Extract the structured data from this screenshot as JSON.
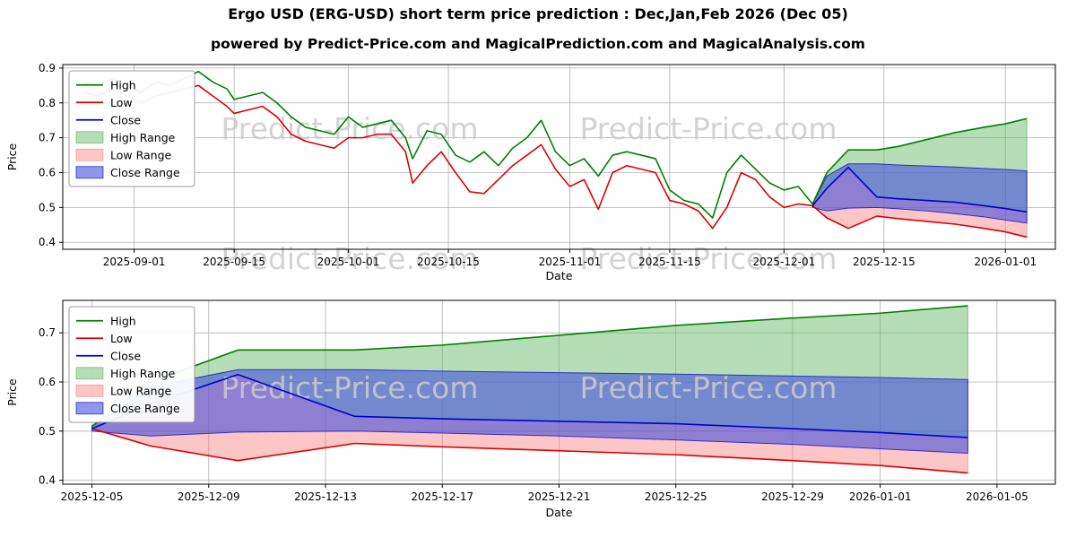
{
  "page": {
    "title": "Ergo USD (ERG-USD) short term price prediction : Dec,Jan,Feb 2026 (Dec 05)",
    "subtitle": "powered by Predict-Price.com and MagicalPrediction.com and MagicalAnalysis.com",
    "watermark": "Predict-Price.com"
  },
  "colors": {
    "high": "#008000",
    "low": "#dd0000",
    "close": "#0000cc",
    "high_range_fill": "rgba(110,190,110,0.5)",
    "high_range_edge": "rgba(60,150,60,0.55)",
    "low_range_fill": "rgba(250,120,120,0.42)",
    "low_range_edge": "rgba(235,100,100,0.55)",
    "close_range_fill": "rgba(70,80,220,0.6)",
    "close_range_edge": "rgba(25,25,200,0.85)",
    "grid": "#b0b0b0",
    "frame": "#000000",
    "watermark": "#cccccc"
  },
  "chart_data": [
    {
      "type": "line",
      "title": "",
      "xlabel": "Date",
      "ylabel": "Price",
      "x_ticks": [
        "2025-09-01",
        "2025-09-15",
        "2025-10-01",
        "2025-10-15",
        "2025-11-01",
        "2025-11-15",
        "2025-12-01",
        "2025-12-15",
        "2026-01-01"
      ],
      "y_ticks": [
        0.4,
        0.5,
        0.6,
        0.7,
        0.8,
        0.9
      ],
      "xlim": [
        "2025-08-22",
        "2026-01-08"
      ],
      "ylim": [
        0.38,
        0.91
      ],
      "legend": [
        "High",
        "Low",
        "Close",
        "High Range",
        "Low Range",
        "Close Range"
      ],
      "series": [
        {
          "name": "High",
          "color_key": "high",
          "x": [
            "2025-08-25",
            "2025-08-27",
            "2025-08-29",
            "2025-08-31",
            "2025-09-02",
            "2025-09-04",
            "2025-09-06",
            "2025-09-08",
            "2025-09-10",
            "2025-09-12",
            "2025-09-14",
            "2025-09-15",
            "2025-09-17",
            "2025-09-19",
            "2025-09-21",
            "2025-09-23",
            "2025-09-25",
            "2025-09-27",
            "2025-09-29",
            "2025-10-01",
            "2025-10-03",
            "2025-10-05",
            "2025-10-07",
            "2025-10-09",
            "2025-10-10",
            "2025-10-12",
            "2025-10-14",
            "2025-10-16",
            "2025-10-18",
            "2025-10-20",
            "2025-10-22",
            "2025-10-24",
            "2025-10-26",
            "2025-10-28",
            "2025-10-30",
            "2025-11-01",
            "2025-11-03",
            "2025-11-05",
            "2025-11-07",
            "2025-11-09",
            "2025-11-11",
            "2025-11-13",
            "2025-11-15",
            "2025-11-17",
            "2025-11-19",
            "2025-11-21",
            "2025-11-23",
            "2025-11-25",
            "2025-11-27",
            "2025-11-29",
            "2025-12-01",
            "2025-12-03",
            "2025-12-05",
            "2025-12-07",
            "2025-12-10",
            "2025-12-14",
            "2025-12-17",
            "2025-12-21",
            "2025-12-25",
            "2025-12-29",
            "2026-01-01",
            "2026-01-04"
          ],
          "y": [
            0.86,
            0.85,
            0.87,
            0.85,
            0.83,
            0.86,
            0.85,
            0.87,
            0.89,
            0.86,
            0.84,
            0.81,
            0.82,
            0.83,
            0.8,
            0.76,
            0.73,
            0.72,
            0.71,
            0.76,
            0.73,
            0.74,
            0.75,
            0.7,
            0.64,
            0.72,
            0.71,
            0.65,
            0.63,
            0.66,
            0.62,
            0.67,
            0.7,
            0.75,
            0.66,
            0.62,
            0.64,
            0.59,
            0.65,
            0.66,
            0.65,
            0.64,
            0.55,
            0.52,
            0.51,
            0.47,
            0.6,
            0.65,
            0.61,
            0.57,
            0.55,
            0.56,
            0.51,
            0.6,
            0.665,
            0.665,
            0.675,
            0.695,
            0.715,
            0.73,
            0.74,
            0.755
          ]
        },
        {
          "name": "Low",
          "color_key": "low",
          "x": [
            "2025-08-25",
            "2025-08-27",
            "2025-08-29",
            "2025-08-31",
            "2025-09-02",
            "2025-09-04",
            "2025-09-06",
            "2025-09-08",
            "2025-09-10",
            "2025-09-12",
            "2025-09-14",
            "2025-09-15",
            "2025-09-17",
            "2025-09-19",
            "2025-09-21",
            "2025-09-23",
            "2025-09-25",
            "2025-09-27",
            "2025-09-29",
            "2025-10-01",
            "2025-10-03",
            "2025-10-05",
            "2025-10-07",
            "2025-10-09",
            "2025-10-10",
            "2025-10-12",
            "2025-10-14",
            "2025-10-16",
            "2025-10-18",
            "2025-10-20",
            "2025-10-22",
            "2025-10-24",
            "2025-10-26",
            "2025-10-28",
            "2025-10-30",
            "2025-11-01",
            "2025-11-03",
            "2025-11-05",
            "2025-11-07",
            "2025-11-09",
            "2025-11-11",
            "2025-11-13",
            "2025-11-15",
            "2025-11-17",
            "2025-11-19",
            "2025-11-21",
            "2025-11-23",
            "2025-11-25",
            "2025-11-27",
            "2025-11-29",
            "2025-12-01",
            "2025-12-03",
            "2025-12-05",
            "2025-12-07",
            "2025-12-10",
            "2025-12-14",
            "2025-12-17",
            "2025-12-21",
            "2025-12-25",
            "2025-12-29",
            "2026-01-01",
            "2026-01-04"
          ],
          "y": [
            0.83,
            0.82,
            0.84,
            0.82,
            0.8,
            0.82,
            0.83,
            0.84,
            0.85,
            0.82,
            0.79,
            0.77,
            0.78,
            0.79,
            0.76,
            0.71,
            0.69,
            0.68,
            0.67,
            0.7,
            0.7,
            0.71,
            0.71,
            0.66,
            0.57,
            0.62,
            0.66,
            0.6,
            0.545,
            0.54,
            0.58,
            0.62,
            0.65,
            0.68,
            0.61,
            0.56,
            0.58,
            0.495,
            0.6,
            0.62,
            0.61,
            0.6,
            0.52,
            0.51,
            0.49,
            0.44,
            0.5,
            0.6,
            0.58,
            0.53,
            0.5,
            0.51,
            0.505,
            0.47,
            0.44,
            0.475,
            0.468,
            0.46,
            0.452,
            0.44,
            0.43,
            0.415
          ]
        },
        {
          "name": "Close",
          "color_key": "close",
          "x": [
            "2025-12-05",
            "2025-12-07",
            "2025-12-10",
            "2025-12-14",
            "2025-12-17",
            "2025-12-21",
            "2025-12-25",
            "2025-12-29",
            "2026-01-01",
            "2026-01-04"
          ],
          "y": [
            0.505,
            0.555,
            0.615,
            0.53,
            0.525,
            0.52,
            0.515,
            0.505,
            0.497,
            0.487
          ]
        }
      ],
      "bands": [
        {
          "name": "High Range",
          "fill_key": "high_range_fill",
          "edge_key": "high_range_edge",
          "x": [
            "2025-12-05",
            "2025-12-07",
            "2025-12-10",
            "2025-12-14",
            "2025-12-17",
            "2025-12-21",
            "2025-12-25",
            "2025-12-29",
            "2026-01-01",
            "2026-01-04"
          ],
          "upper": [
            0.51,
            0.6,
            0.665,
            0.665,
            0.675,
            0.695,
            0.715,
            0.73,
            0.74,
            0.755
          ],
          "lower": [
            0.505,
            0.555,
            0.615,
            0.53,
            0.525,
            0.52,
            0.515,
            0.505,
            0.497,
            0.487
          ]
        },
        {
          "name": "Low Range",
          "fill_key": "low_range_fill",
          "edge_key": "low_range_edge",
          "x": [
            "2025-12-05",
            "2025-12-07",
            "2025-12-10",
            "2025-12-14",
            "2025-12-17",
            "2025-12-21",
            "2025-12-25",
            "2025-12-29",
            "2026-01-01",
            "2026-01-04"
          ],
          "upper": [
            0.505,
            0.555,
            0.615,
            0.53,
            0.525,
            0.52,
            0.515,
            0.505,
            0.497,
            0.487
          ],
          "lower": [
            0.505,
            0.47,
            0.44,
            0.475,
            0.468,
            0.46,
            0.452,
            0.44,
            0.43,
            0.415
          ]
        },
        {
          "name": "Close Range",
          "fill_key": "close_range_fill",
          "edge_key": "close_range_edge",
          "x": [
            "2025-12-05",
            "2025-12-07",
            "2025-12-10",
            "2025-12-14",
            "2025-12-17",
            "2025-12-21",
            "2025-12-25",
            "2025-12-29",
            "2026-01-01",
            "2026-01-04"
          ],
          "upper": [
            0.51,
            0.59,
            0.625,
            0.625,
            0.622,
            0.619,
            0.616,
            0.612,
            0.609,
            0.605
          ],
          "lower": [
            0.5,
            0.49,
            0.498,
            0.5,
            0.496,
            0.49,
            0.482,
            0.473,
            0.464,
            0.455
          ]
        }
      ]
    },
    {
      "type": "line",
      "title": "",
      "xlabel": "Date",
      "ylabel": "Price",
      "x_ticks": [
        "2025-12-05",
        "2025-12-09",
        "2025-12-13",
        "2025-12-17",
        "2025-12-21",
        "2025-12-25",
        "2025-12-29",
        "2026-01-01",
        "2026-01-05"
      ],
      "y_ticks": [
        0.4,
        0.5,
        0.6,
        0.7
      ],
      "xlim": [
        "2025-12-04",
        "2026-01-07"
      ],
      "ylim": [
        0.392,
        0.766
      ],
      "legend": [
        "High",
        "Low",
        "Close",
        "High Range",
        "Low Range",
        "Close Range"
      ],
      "series": [
        {
          "name": "High",
          "color_key": "high",
          "x": [
            "2025-12-05",
            "2025-12-07",
            "2025-12-10",
            "2025-12-14",
            "2025-12-17",
            "2025-12-21",
            "2025-12-25",
            "2025-12-29",
            "2026-01-01",
            "2026-01-04"
          ],
          "y": [
            0.51,
            0.6,
            0.665,
            0.665,
            0.675,
            0.695,
            0.715,
            0.73,
            0.74,
            0.755
          ]
        },
        {
          "name": "Low",
          "color_key": "low",
          "x": [
            "2025-12-05",
            "2025-12-07",
            "2025-12-10",
            "2025-12-14",
            "2025-12-17",
            "2025-12-21",
            "2025-12-25",
            "2025-12-29",
            "2026-01-01",
            "2026-01-04"
          ],
          "y": [
            0.505,
            0.47,
            0.44,
            0.475,
            0.468,
            0.46,
            0.452,
            0.44,
            0.43,
            0.415
          ]
        },
        {
          "name": "Close",
          "color_key": "close",
          "x": [
            "2025-12-05",
            "2025-12-07",
            "2025-12-10",
            "2025-12-14",
            "2025-12-17",
            "2025-12-21",
            "2025-12-25",
            "2025-12-29",
            "2026-01-01",
            "2026-01-04"
          ],
          "y": [
            0.505,
            0.555,
            0.615,
            0.53,
            0.525,
            0.52,
            0.515,
            0.505,
            0.497,
            0.487
          ]
        }
      ],
      "bands": [
        {
          "name": "High Range",
          "fill_key": "high_range_fill",
          "edge_key": "high_range_edge",
          "x": [
            "2025-12-05",
            "2025-12-07",
            "2025-12-10",
            "2025-12-14",
            "2025-12-17",
            "2025-12-21",
            "2025-12-25",
            "2025-12-29",
            "2026-01-01",
            "2026-01-04"
          ],
          "upper": [
            0.51,
            0.6,
            0.665,
            0.665,
            0.675,
            0.695,
            0.715,
            0.73,
            0.74,
            0.755
          ],
          "lower": [
            0.505,
            0.555,
            0.615,
            0.53,
            0.525,
            0.52,
            0.515,
            0.505,
            0.497,
            0.487
          ]
        },
        {
          "name": "Low Range",
          "fill_key": "low_range_fill",
          "edge_key": "low_range_edge",
          "x": [
            "2025-12-05",
            "2025-12-07",
            "2025-12-10",
            "2025-12-14",
            "2025-12-17",
            "2025-12-21",
            "2025-12-25",
            "2025-12-29",
            "2026-01-01",
            "2026-01-04"
          ],
          "upper": [
            0.505,
            0.555,
            0.615,
            0.53,
            0.525,
            0.52,
            0.515,
            0.505,
            0.497,
            0.487
          ],
          "lower": [
            0.505,
            0.47,
            0.44,
            0.475,
            0.468,
            0.46,
            0.452,
            0.44,
            0.43,
            0.415
          ]
        },
        {
          "name": "Close Range",
          "fill_key": "close_range_fill",
          "edge_key": "close_range_edge",
          "x": [
            "2025-12-05",
            "2025-12-07",
            "2025-12-10",
            "2025-12-14",
            "2025-12-17",
            "2025-12-21",
            "2025-12-25",
            "2025-12-29",
            "2026-01-01",
            "2026-01-04"
          ],
          "upper": [
            0.51,
            0.59,
            0.625,
            0.625,
            0.622,
            0.619,
            0.616,
            0.612,
            0.609,
            0.605
          ],
          "lower": [
            0.5,
            0.49,
            0.498,
            0.5,
            0.496,
            0.49,
            0.482,
            0.473,
            0.464,
            0.455
          ]
        }
      ]
    }
  ]
}
